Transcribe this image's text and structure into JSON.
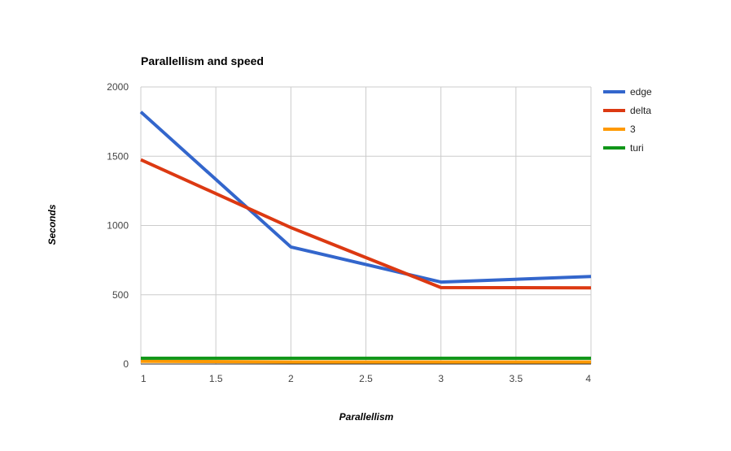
{
  "chart_data": {
    "type": "line",
    "title": "Parallellism and speed",
    "xlabel": "Parallellism",
    "ylabel": "Seconds",
    "x": [
      1,
      2,
      3,
      4
    ],
    "xlim": [
      1,
      4
    ],
    "ylim": [
      0,
      2000
    ],
    "x_ticks": [
      "1",
      "1.5",
      "2",
      "2.5",
      "3",
      "3.5",
      "4"
    ],
    "y_ticks": [
      "0",
      "500",
      "1000",
      "1500",
      "2000"
    ],
    "grid": true,
    "legend_position": "right",
    "series": [
      {
        "name": "edge",
        "color": "#3366cc",
        "values": [
          1820,
          845,
          592,
          632
        ]
      },
      {
        "name": "delta",
        "color": "#dc3912",
        "values": [
          1475,
          985,
          552,
          550
        ]
      },
      {
        "name": "3",
        "color": "#ff9900",
        "values": [
          20,
          15,
          15,
          15
        ]
      },
      {
        "name": "turi",
        "color": "#109618",
        "values": [
          42,
          42,
          42,
          42
        ]
      }
    ]
  }
}
